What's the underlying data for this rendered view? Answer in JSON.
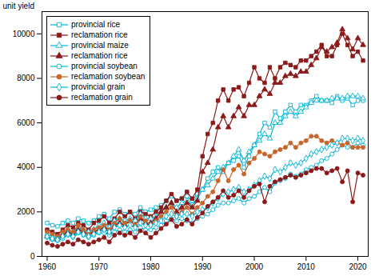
{
  "chart_data": {
    "type": "line",
    "ylabel": "unit yield",
    "x": [
      1960,
      1961,
      1962,
      1963,
      1964,
      1965,
      1966,
      1967,
      1968,
      1969,
      1970,
      1971,
      1972,
      1973,
      1974,
      1975,
      1976,
      1977,
      1978,
      1979,
      1980,
      1981,
      1982,
      1983,
      1984,
      1985,
      1986,
      1987,
      1988,
      1989,
      1990,
      1991,
      1992,
      1993,
      1994,
      1995,
      1996,
      1997,
      1998,
      1999,
      2000,
      2001,
      2002,
      2003,
      2004,
      2005,
      2006,
      2007,
      2008,
      2009,
      2010,
      2011,
      2012,
      2013,
      2014,
      2015,
      2016,
      2017,
      2018,
      2019,
      2020,
      2021
    ],
    "series": [
      {
        "name": "provincial rice",
        "color": "#00b4d8",
        "marker": "square_open",
        "values": [
          1500,
          1400,
          1350,
          1500,
          1600,
          1500,
          1700,
          1600,
          1500,
          1600,
          1800,
          1900,
          1700,
          2000,
          2100,
          1900,
          2000,
          1900,
          2200,
          2000,
          2100,
          2200,
          2300,
          2500,
          2700,
          2500,
          2600,
          2700,
          2500,
          2800,
          3000,
          3500,
          3800,
          4000,
          3800,
          4200,
          4300,
          4500,
          4000,
          4500,
          5000,
          5500,
          6000,
          5800,
          6500,
          6200,
          6500,
          6800,
          6500,
          6800,
          6800,
          7000,
          7200,
          7000,
          7000,
          6900,
          7200,
          7000,
          7100,
          6800,
          7000,
          7000
        ]
      },
      {
        "name": "reclamation rice",
        "color": "#8b1a1a",
        "marker": "square",
        "values": [
          1200,
          1100,
          1000,
          1200,
          1400,
          1300,
          1500,
          1400,
          1200,
          1500,
          1600,
          1800,
          1500,
          1700,
          2000,
          1800,
          2000,
          1700,
          2000,
          1900,
          1800,
          2000,
          2200,
          2500,
          2800,
          2500,
          2600,
          2900,
          2600,
          3000,
          4500,
          5500,
          6000,
          7000,
          7500,
          7000,
          7500,
          7600,
          7200,
          7800,
          8500,
          8000,
          7800,
          8500,
          8000,
          8500,
          8700,
          8600,
          8500,
          8800,
          8800,
          9000,
          9200,
          9500,
          9000,
          9000,
          9500,
          10000,
          9500,
          9000,
          9200,
          8800
        ]
      },
      {
        "name": "provincial maize",
        "color": "#00b4d8",
        "marker": "triangle_open",
        "values": [
          1000,
          900,
          850,
          1000,
          1200,
          1100,
          1300,
          1200,
          1100,
          1200,
          1400,
          1500,
          1300,
          1600,
          1700,
          1600,
          1700,
          1600,
          1900,
          1700,
          1700,
          1800,
          2000,
          2200,
          2400,
          2200,
          2400,
          2500,
          2300,
          2600,
          3000,
          3200,
          3500,
          3800,
          4000,
          4200,
          4500,
          4800,
          4300,
          4700,
          5000,
          5200,
          5500,
          5300,
          6000,
          6000,
          6300,
          6500,
          6300,
          6500,
          6700,
          6900,
          7000,
          7000,
          7000,
          7100,
          7100,
          7100,
          7200,
          7200,
          7200,
          7100
        ]
      },
      {
        "name": "reclamation rice",
        "color": "#8b1a1a",
        "marker": "triangle",
        "values": [
          900,
          800,
          750,
          950,
          1100,
          1000,
          1200,
          1100,
          950,
          1100,
          1200,
          1300,
          1100,
          1400,
          1500,
          1400,
          1600,
          1400,
          1700,
          1500,
          1500,
          1700,
          2000,
          2200,
          2400,
          2000,
          2200,
          2400,
          2200,
          2500,
          3800,
          4200,
          4800,
          5800,
          6300,
          5800,
          6300,
          6700,
          6300,
          6800,
          6800,
          7200,
          7500,
          7300,
          7800,
          7800,
          8100,
          8200,
          8100,
          8300,
          8300,
          8600,
          8900,
          9400,
          9200,
          9400,
          9600,
          10200,
          9800,
          9300,
          9800,
          9500
        ]
      },
      {
        "name": "provincial soybean",
        "color": "#00b4d8",
        "marker": "circle_open",
        "values": [
          850,
          750,
          700,
          800,
          950,
          850,
          1050,
          950,
          850,
          950,
          1050,
          1050,
          950,
          1100,
          1200,
          1100,
          1200,
          1100,
          1300,
          1200,
          1200,
          1300,
          1400,
          1600,
          1700,
          1600,
          1700,
          1600,
          1500,
          1700,
          1800,
          1900,
          2100,
          2300,
          2400,
          2400,
          2500,
          2600,
          2400,
          2600,
          2700,
          2900,
          3100,
          2900,
          3300,
          3400,
          3500,
          3700,
          3600,
          3700,
          3900,
          4000,
          4100,
          4300,
          4400,
          4600,
          4800,
          5000,
          4900,
          4900,
          5100,
          5000
        ]
      },
      {
        "name": "reclamation soybean",
        "color": "#c8652a",
        "marker": "circle",
        "values": [
          1100,
          1000,
          900,
          1100,
          1200,
          1100,
          1400,
          1200,
          1000,
          1200,
          1300,
          1400,
          1200,
          1500,
          1700,
          1500,
          1600,
          1400,
          1800,
          1600,
          1400,
          1600,
          1800,
          2000,
          2200,
          1800,
          2000,
          2200,
          1900,
          2200,
          2400,
          2700,
          2900,
          3400,
          3900,
          3400,
          3900,
          4100,
          3700,
          4200,
          4400,
          4700,
          4600,
          4500,
          4700,
          4800,
          4900,
          5100,
          4900,
          5100,
          5200,
          5400,
          5400,
          5200,
          5100,
          5200,
          5100,
          5000,
          5100,
          4900,
          4900,
          4900
        ]
      },
      {
        "name": "provincial grain",
        "color": "#00b4d8",
        "marker": "diamond_open",
        "values": [
          900,
          800,
          750,
          900,
          1000,
          900,
          1100,
          1000,
          900,
          1000,
          1100,
          1200,
          1100,
          1300,
          1400,
          1300,
          1400,
          1300,
          1500,
          1400,
          1400,
          1500,
          1600,
          1800,
          1900,
          1800,
          1900,
          1900,
          1800,
          2000,
          2100,
          2200,
          2400,
          2600,
          2800,
          2900,
          3000,
          3100,
          2900,
          3000,
          3200,
          3400,
          3600,
          3500,
          3900,
          3800,
          4000,
          4200,
          4100,
          4200,
          4400,
          4600,
          4700,
          4800,
          4900,
          5000,
          5100,
          5300,
          5300,
          5200,
          5300,
          5200
        ]
      },
      {
        "name": "reclamation grain",
        "color": "#8b1a1a",
        "marker": "circle",
        "values": [
          600,
          500,
          450,
          550,
          650,
          550,
          750,
          650,
          550,
          650,
          750,
          850,
          650,
          950,
          1050,
          950,
          1050,
          850,
          1150,
          1050,
          850,
          1050,
          1250,
          1450,
          1650,
          1350,
          1450,
          1650,
          1450,
          1750,
          1950,
          2250,
          2450,
          2650,
          2950,
          2650,
          2750,
          2950,
          2650,
          2950,
          3150,
          3250,
          2450,
          3150,
          3350,
          3450,
          3550,
          3650,
          3550,
          3650,
          3750,
          3850,
          3950,
          3950,
          3750,
          3850,
          3950,
          3350,
          3850,
          2450,
          3750,
          3650
        ]
      }
    ],
    "xlim": [
      1959,
      2022
    ],
    "xticks": [
      1960,
      1970,
      1980,
      1990,
      2000,
      2010,
      2020
    ],
    "ylim": [
      0,
      11000
    ],
    "yticks": [
      0,
      2000,
      4000,
      6000,
      8000,
      10000
    ],
    "legend": "upper left"
  }
}
